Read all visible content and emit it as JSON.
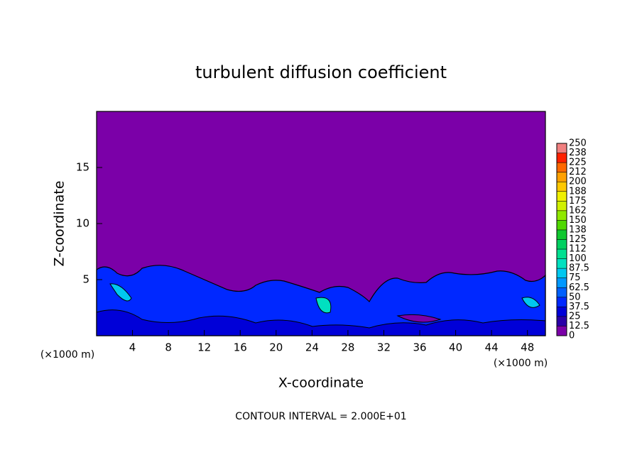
{
  "chart_data": {
    "type": "contour",
    "title": "turbulent diffusion coefficient",
    "xlabel": "X-coordinate",
    "ylabel": "Z-coordinate",
    "x_unit_label": "(×1000 m)",
    "footer": "CONTOUR INTERVAL = 2.000E+01",
    "xlim": [
      0,
      50
    ],
    "xticks": [
      4,
      8,
      12,
      16,
      20,
      24,
      28,
      32,
      36,
      40,
      44,
      48
    ],
    "ylim": [
      0,
      20
    ],
    "yticks": [
      5,
      10,
      15
    ],
    "background_color": "#7b00a8",
    "colorbar": {
      "lim": [
        0,
        250
      ],
      "ticks": [
        0,
        12.5,
        25,
        37.5,
        50,
        62.5,
        75,
        87.5,
        100,
        {
          "value": 112.5,
          "label": "112"
        },
        125,
        {
          "value": 137.5,
          "label": "138"
        },
        150,
        {
          "value": 162.5,
          "label": "162"
        },
        175,
        {
          "value": 187.5,
          "label": "188"
        },
        200,
        {
          "value": 212.5,
          "label": "212"
        },
        225,
        {
          "value": 237.5,
          "label": "238"
        },
        250
      ],
      "colors": [
        "#7b00a8",
        "#2a00a8",
        "#0000d8",
        "#0028ff",
        "#0060ff",
        "#0098ff",
        "#00c8f0",
        "#00e0c0",
        "#00e090",
        "#00d060",
        "#10c830",
        "#50d800",
        "#90e800",
        "#d0f000",
        "#f0f000",
        "#ffc800",
        "#ffa000",
        "#ff6800",
        "#ff2000",
        "#f08080"
      ]
    }
  }
}
